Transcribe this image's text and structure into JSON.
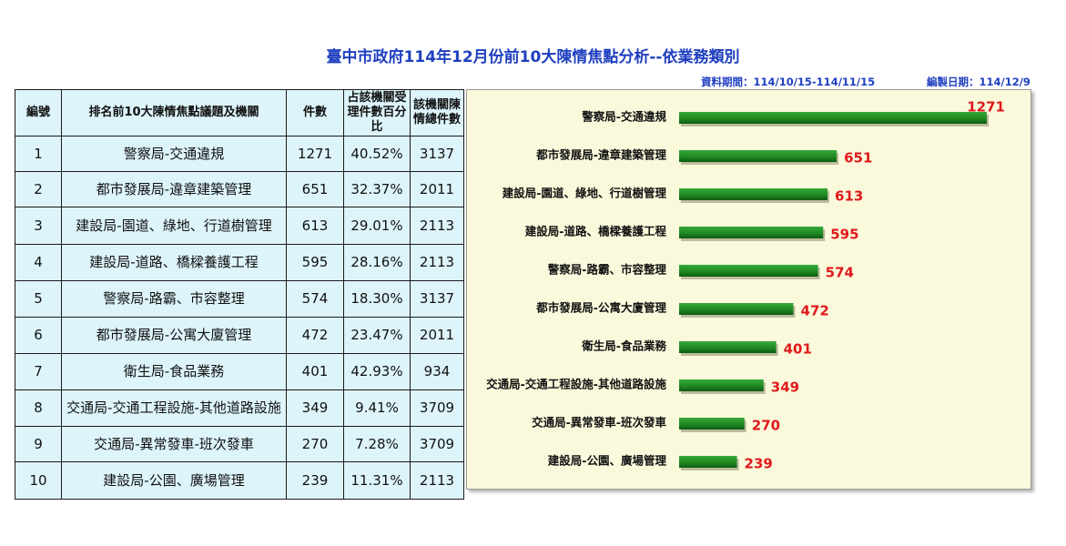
{
  "title": "臺中市政府114年12月份前10大陳情焦點分析--依業務類別",
  "meta": {
    "period": "資料期間：114/10/15-114/11/15",
    "compiled": "編製日期：114/12/9"
  },
  "table": {
    "headers": {
      "no": "編號",
      "topic": "排名前10大陳情焦點議題及機關",
      "count": "件數",
      "pct": "占該機關受理件數百分比",
      "total": "該機關陳情總件數"
    },
    "rows": [
      {
        "no": "1",
        "topic": "警察局-交通違規",
        "count": "1271",
        "pct": "40.52%",
        "total": "3137"
      },
      {
        "no": "2",
        "topic": "都市發展局-違章建築管理",
        "count": "651",
        "pct": "32.37%",
        "total": "2011"
      },
      {
        "no": "3",
        "topic": "建設局-園道、綠地、行道樹管理",
        "count": "613",
        "pct": "29.01%",
        "total": "2113"
      },
      {
        "no": "4",
        "topic": "建設局-道路、橋樑養護工程",
        "count": "595",
        "pct": "28.16%",
        "total": "2113"
      },
      {
        "no": "5",
        "topic": "警察局-路霸、市容整理",
        "count": "574",
        "pct": "18.30%",
        "total": "3137"
      },
      {
        "no": "6",
        "topic": "都市發展局-公寓大廈管理",
        "count": "472",
        "pct": "23.47%",
        "total": "2011"
      },
      {
        "no": "7",
        "topic": "衛生局-食品業務",
        "count": "401",
        "pct": "42.93%",
        "total": "934"
      },
      {
        "no": "8",
        "topic": "交通局-交通工程設施-其他道路設施",
        "count": "349",
        "pct": "9.41%",
        "total": "3709"
      },
      {
        "no": "9",
        "topic": "交通局-異常發車-班次發車",
        "count": "270",
        "pct": "7.28%",
        "total": "3709"
      },
      {
        "no": "10",
        "topic": "建設局-公園、廣場管理",
        "count": "239",
        "pct": "11.31%",
        "total": "2113"
      }
    ]
  },
  "chart_data": {
    "type": "bar",
    "orientation": "horizontal",
    "categories": [
      "警察局-交通違規",
      "都市發展局-違章建築管理",
      "建設局-園道、綠地、行道樹管理",
      "建設局-道路、橋樑養護工程",
      "警察局-路霸、市容整理",
      "都市發展局-公寓大廈管理",
      "衛生局-食品業務",
      "交通局-交通工程設施-其他道路設施",
      "交通局-異常發車-班次發車",
      "建設局-公園、廣場管理"
    ],
    "values": [
      1271,
      651,
      613,
      595,
      574,
      472,
      401,
      349,
      270,
      239
    ],
    "xlim": [
      0,
      1271
    ],
    "grid": false,
    "colors": {
      "bar": "#1f8a22",
      "value_label": "#e0181c",
      "background": "#fbf9dc"
    }
  }
}
